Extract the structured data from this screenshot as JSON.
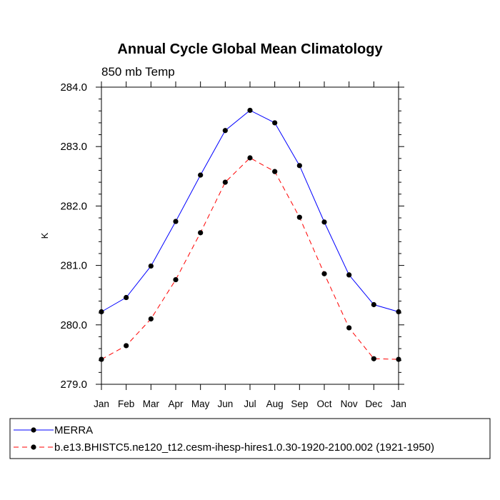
{
  "chart_data": {
    "type": "line",
    "title": "Annual Cycle Global Mean Climatology",
    "subtitle": "850 mb Temp",
    "ylabel": "K",
    "xlabel": "",
    "categories": [
      "Jan",
      "Feb",
      "Mar",
      "Apr",
      "May",
      "Jun",
      "Jul",
      "Aug",
      "Sep",
      "Oct",
      "Nov",
      "Dec",
      "Jan"
    ],
    "ylim": [
      279.0,
      284.0
    ],
    "yticks": [
      "279.0",
      "280.0",
      "281.0",
      "282.0",
      "283.0",
      "284.0"
    ],
    "series": [
      {
        "name": "MERRA",
        "color": "#0000ff",
        "dash": "solid",
        "values": [
          280.22,
          280.46,
          280.99,
          281.74,
          282.52,
          283.27,
          283.61,
          283.4,
          282.68,
          281.73,
          280.84,
          280.34,
          280.22
        ]
      },
      {
        "name": "b.e13.BHISTC5.ne120_t12.cesm-ihesp-hires1.0.30-1920-2100.002 (1921-1950)",
        "color": "#ff0000",
        "dash": "dashed",
        "values": [
          279.42,
          279.65,
          280.1,
          280.76,
          281.55,
          282.4,
          282.81,
          282.58,
          281.81,
          280.86,
          279.95,
          279.43,
          279.42
        ]
      }
    ],
    "grid": false,
    "legend_placement": "bottom-left"
  }
}
